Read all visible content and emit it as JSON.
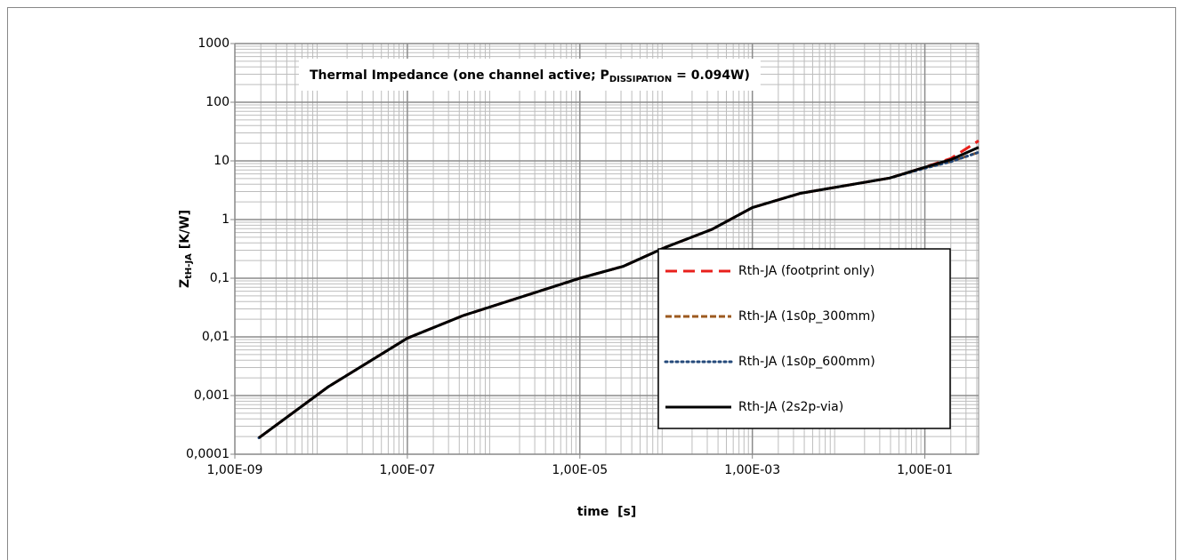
{
  "chart_data": {
    "type": "line",
    "title": [
      "Thermal Impedance (one channel active; P",
      "DISSIPATION",
      " = 0.094W)"
    ],
    "x_label": "time  [s]",
    "y_label": [
      "Z",
      "tH-JA",
      " [K/W]"
    ],
    "log_x": true,
    "log_y": true,
    "grid": true,
    "minor_grid": true,
    "legend": "right",
    "xlim": [
      1e-09,
      0.42
    ],
    "xticks": [
      {
        "value": 1e-09,
        "label": "1,00E-09"
      },
      {
        "value": 1e-07,
        "label": "1,00E-07"
      },
      {
        "value": 1e-05,
        "label": "1,00E-05"
      },
      {
        "value": 0.001,
        "label": "1,00E-03"
      },
      {
        "value": 0.1,
        "label": "1,00E-01"
      }
    ],
    "ylim": [
      0.0001,
      1000
    ],
    "yticks": [
      {
        "value": 0.0001,
        "label": "0,0001"
      },
      {
        "value": 0.001,
        "label": "0,001"
      },
      {
        "value": 0.01,
        "label": "0,01"
      },
      {
        "value": 0.1,
        "label": "0,1"
      },
      1,
      10,
      100,
      1000
    ],
    "x": [
      1.9e-09,
      1.2e-08,
      1e-07,
      4.4e-07,
      1e-05,
      3.2e-05,
      0.0001,
      0.00034,
      0.001,
      0.0036,
      0.039,
      0.1,
      0.2,
      0.42
    ],
    "series": [
      {
        "name": "Rth-JA (footprint only)",
        "color": "#e8201c",
        "dash": "13,7",
        "values": [
          0.00019,
          0.0014,
          0.0095,
          0.023,
          0.1,
          0.16,
          0.34,
          0.68,
          1.6,
          2.8,
          5.1,
          7.8,
          11,
          22
        ]
      },
      {
        "name": "Rth-JA (1s0p_300mm)",
        "color": "#9c5a1f",
        "dash": "7,3",
        "values": [
          0.00019,
          0.0014,
          0.0095,
          0.023,
          0.1,
          0.16,
          0.34,
          0.68,
          1.6,
          2.8,
          5.1,
          7.6,
          9.8,
          14
        ]
      },
      {
        "name": "Rth-JA (1s0p_600mm)",
        "color": "#24497a",
        "dash": "2,4",
        "values": [
          0.00019,
          0.0014,
          0.0095,
          0.023,
          0.1,
          0.16,
          0.34,
          0.68,
          1.6,
          2.8,
          5.1,
          7.5,
          9.7,
          14
        ]
      },
      {
        "name": "Rth-JA (2s2p-via)",
        "color": "#000000",
        "dash": "none",
        "values": [
          0.00019,
          0.0014,
          0.0095,
          0.023,
          0.1,
          0.16,
          0.34,
          0.68,
          1.6,
          2.8,
          5.1,
          7.8,
          10.5,
          17
        ]
      }
    ]
  }
}
